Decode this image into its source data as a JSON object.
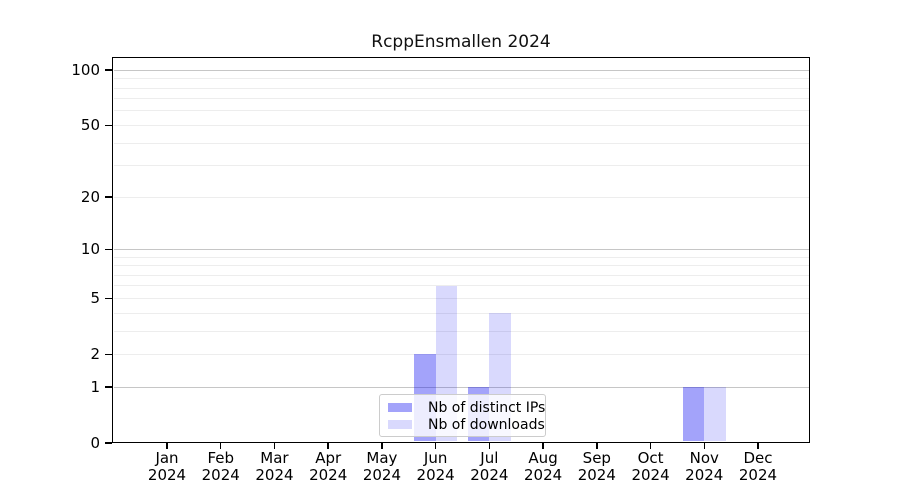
{
  "chart_data": {
    "type": "bar",
    "title": "RcppEnsmallen 2024",
    "categories": [
      "Jan",
      "Feb",
      "Mar",
      "Apr",
      "May",
      "Jun",
      "Jul",
      "Aug",
      "Sep",
      "Oct",
      "Nov",
      "Dec"
    ],
    "x_year_label": "2024",
    "series": [
      {
        "name": "Nb of distinct IPs",
        "color": "rgba(0,0,240,0.36)",
        "color_hex_on_white": "#A6A6FA",
        "values": [
          0,
          0,
          0,
          0,
          0,
          2,
          1,
          0,
          0,
          0,
          1,
          0
        ]
      },
      {
        "name": "Nb of downloads",
        "color": "rgba(0,0,240,0.15)",
        "color_hex_on_white": "#D9D9FC",
        "values": [
          0,
          0,
          0,
          0,
          0,
          6,
          4,
          0,
          0,
          0,
          1,
          0
        ]
      }
    ],
    "yscale": "log1p",
    "ylim": [
      0,
      118
    ],
    "y_ticks": [
      0,
      1,
      2,
      5,
      10,
      20,
      50,
      100
    ],
    "y_major_gridlines": [
      1,
      10,
      100
    ],
    "y_minor_gridlines": [
      2,
      3,
      4,
      5,
      6,
      7,
      8,
      9,
      20,
      30,
      40,
      50,
      60,
      70,
      80,
      90
    ],
    "grid": true,
    "legend_position": "bottom-center"
  },
  "colors": {
    "major_grid": "#c6c6c6",
    "minor_grid": "#ededed",
    "axis": "#000000",
    "background": "#ffffff"
  }
}
